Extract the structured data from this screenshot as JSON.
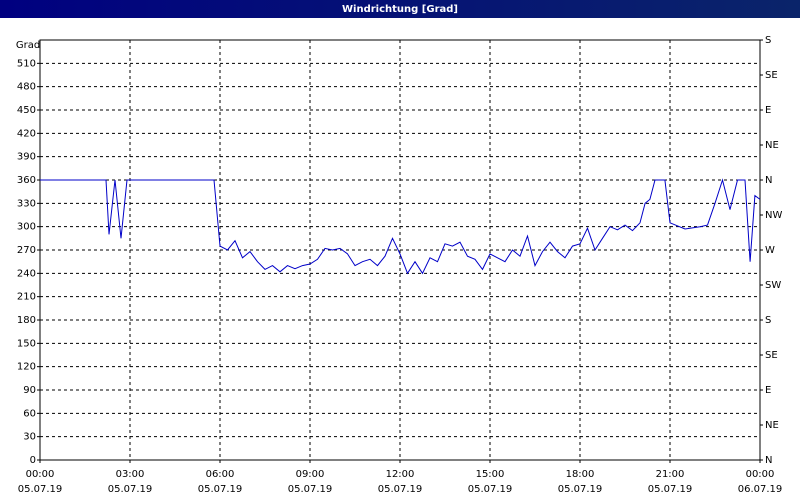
{
  "chart_data": {
    "type": "line",
    "title": "Windrichtung [Grad]",
    "ylabel": "Grad",
    "x": [
      0,
      2.2,
      2.3,
      2.5,
      2.7,
      2.9,
      5.8,
      6.0,
      6.25,
      6.5,
      6.75,
      7.0,
      7.25,
      7.5,
      7.75,
      8.0,
      8.25,
      8.5,
      8.75,
      9.0,
      9.25,
      9.5,
      9.75,
      10.0,
      10.25,
      10.5,
      10.75,
      11.0,
      11.25,
      11.5,
      11.75,
      12.0,
      12.25,
      12.5,
      12.75,
      13.0,
      13.25,
      13.5,
      13.75,
      14.0,
      14.25,
      14.5,
      14.75,
      15.0,
      15.25,
      15.5,
      15.75,
      16.0,
      16.25,
      16.5,
      16.75,
      17.0,
      17.25,
      17.5,
      17.75,
      18.0,
      18.25,
      18.5,
      18.75,
      19.0,
      19.25,
      19.5,
      19.75,
      20.0,
      20.17,
      20.33,
      20.5,
      20.83,
      21.0,
      21.5,
      22.0,
      22.25,
      22.5,
      22.75,
      23.0,
      23.25,
      23.5,
      23.67,
      23.83,
      24.0
    ],
    "values": [
      360,
      360,
      290,
      360,
      285,
      360,
      360,
      275,
      270,
      282,
      260,
      268,
      255,
      245,
      250,
      242,
      250,
      246,
      250,
      252,
      258,
      272,
      270,
      272,
      265,
      250,
      255,
      258,
      250,
      262,
      285,
      265,
      240,
      255,
      240,
      260,
      255,
      278,
      275,
      280,
      262,
      258,
      245,
      265,
      260,
      255,
      270,
      262,
      288,
      250,
      268,
      280,
      268,
      260,
      275,
      278,
      298,
      270,
      285,
      300,
      296,
      302,
      295,
      305,
      330,
      335,
      360,
      360,
      305,
      297,
      300,
      302,
      330,
      360,
      322,
      360,
      360,
      255,
      340,
      335
    ],
    "color": "#0000c8",
    "xlim": [
      0,
      24
    ],
    "xticks": [
      {
        "value": 0,
        "label": "00:00",
        "date": "05.07.19"
      },
      {
        "value": 3,
        "label": "03:00",
        "date": "05.07.19"
      },
      {
        "value": 6,
        "label": "06:00",
        "date": "05.07.19"
      },
      {
        "value": 9,
        "label": "09:00",
        "date": "05.07.19"
      },
      {
        "value": 12,
        "label": "12:00",
        "date": "05.07.19"
      },
      {
        "value": 15,
        "label": "15:00",
        "date": "05.07.19"
      },
      {
        "value": 18,
        "label": "18:00",
        "date": "05.07.19"
      },
      {
        "value": 21,
        "label": "21:00",
        "date": "05.07.19"
      },
      {
        "value": 24,
        "label": "00:00",
        "date": "06.07.19"
      }
    ],
    "ylim": [
      0,
      540
    ],
    "yticks": [
      0,
      30,
      60,
      90,
      120,
      150,
      180,
      210,
      240,
      270,
      300,
      330,
      360,
      390,
      420,
      450,
      480,
      510
    ],
    "y2lim": [
      0,
      540
    ],
    "y2ticks": [
      {
        "value": 0,
        "label": "N"
      },
      {
        "value": 45,
        "label": "NE"
      },
      {
        "value": 90,
        "label": "E"
      },
      {
        "value": 135,
        "label": "SE"
      },
      {
        "value": 180,
        "label": "S"
      },
      {
        "value": 225,
        "label": "SW"
      },
      {
        "value": 270,
        "label": "W"
      },
      {
        "value": 315,
        "label": "NW"
      },
      {
        "value": 360,
        "label": "N"
      },
      {
        "value": 405,
        "label": "NE"
      },
      {
        "value": 450,
        "label": "E"
      },
      {
        "value": 495,
        "label": "SE"
      },
      {
        "value": 540,
        "label": "S"
      }
    ],
    "grid": true
  }
}
